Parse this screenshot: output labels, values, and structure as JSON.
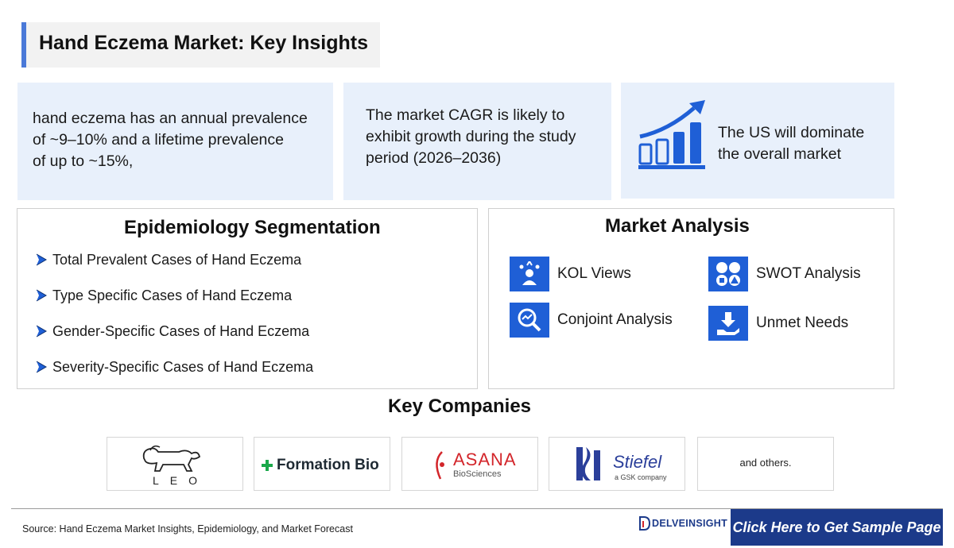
{
  "title": "Hand Eczema Market: Key Insights",
  "insights": [
    {
      "lines": [
        "hand eczema has an annual prevalence",
        "of ~9–10% and a lifetime prevalence",
        "of up to ~15%,"
      ]
    },
    {
      "lines": [
        "The market CAGR is likely to",
        "exhibit growth during the study",
        "period (2026–2036)"
      ]
    },
    {
      "lines": [
        "The US will dominate",
        "the overall market"
      ]
    }
  ],
  "epidemiology": {
    "title": "Epidemiology Segmentation",
    "items": [
      "Total Prevalent Cases of Hand Eczema",
      "Type Specific Cases of Hand Eczema",
      "Gender-Specific Cases of Hand Eczema",
      "Severity-Specific Cases of Hand Eczema"
    ]
  },
  "market_analysis": {
    "title": "Market Analysis",
    "items": [
      {
        "label": "KOL Views",
        "icon": "kol-icon"
      },
      {
        "label": "SWOT Analysis",
        "icon": "swot-icon"
      },
      {
        "label": "Conjoint Analysis",
        "icon": "conjoint-icon"
      },
      {
        "label": "Unmet Needs",
        "icon": "unmet-needs-icon"
      }
    ]
  },
  "companies": {
    "title": "Key Companies",
    "logos": [
      "LEO",
      "Formation Bio",
      "ASANA",
      "BioSciences",
      "Stiefel",
      "a GSK company"
    ],
    "others": "and others."
  },
  "footer": {
    "source": "Source: Hand Eczema Market Insights, Epidemiology, and Market Forecast",
    "brand": "DELVEINSIGHT",
    "cta": "Click Here to Get Sample Page"
  },
  "colors": {
    "accent": "#1f5fd6",
    "card_bg": "#e8f0fb",
    "cta_bg": "#1c3a8a",
    "title_bar": "#4a79d8"
  }
}
